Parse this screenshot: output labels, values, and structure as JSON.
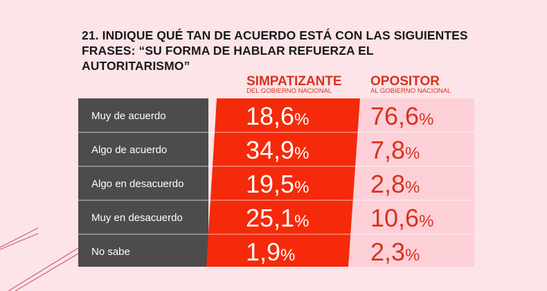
{
  "title": {
    "number": "21.",
    "text": "INDIQUE QUÉ TAN DE ACUERDO ESTÁ CON LAS SIGUIENTES FRASES: “SU FORMA DE HABLAR REFUERZA EL AUTORITARISMO”"
  },
  "chart_data": {
    "type": "table",
    "columns": [
      {
        "name": "SIMPATIZANTE",
        "subtitle": "DEL GOBIERNO NACIONAL",
        "color": "#f52a0a"
      },
      {
        "name": "OPOSITOR",
        "subtitle": "AL GOBIERNO NACIONAL",
        "color": "#fdd0d8"
      }
    ],
    "rows": [
      {
        "label": "Muy de acuerdo",
        "values": [
          "18,6",
          "76,6"
        ]
      },
      {
        "label": "Algo de acuerdo",
        "values": [
          "34,9",
          "7,8"
        ]
      },
      {
        "label": "Algo en desacuerdo",
        "values": [
          "19,5",
          "2,8"
        ]
      },
      {
        "label": "Muy en desacuerdo",
        "values": [
          "25,1",
          "10,6"
        ]
      },
      {
        "label": "No sabe",
        "values": [
          "1,9",
          "2,3"
        ]
      }
    ],
    "unit": "%"
  },
  "colors": {
    "background": "#fce4e8",
    "label_panel": "#4d4b4b",
    "accent": "#d8321e"
  }
}
